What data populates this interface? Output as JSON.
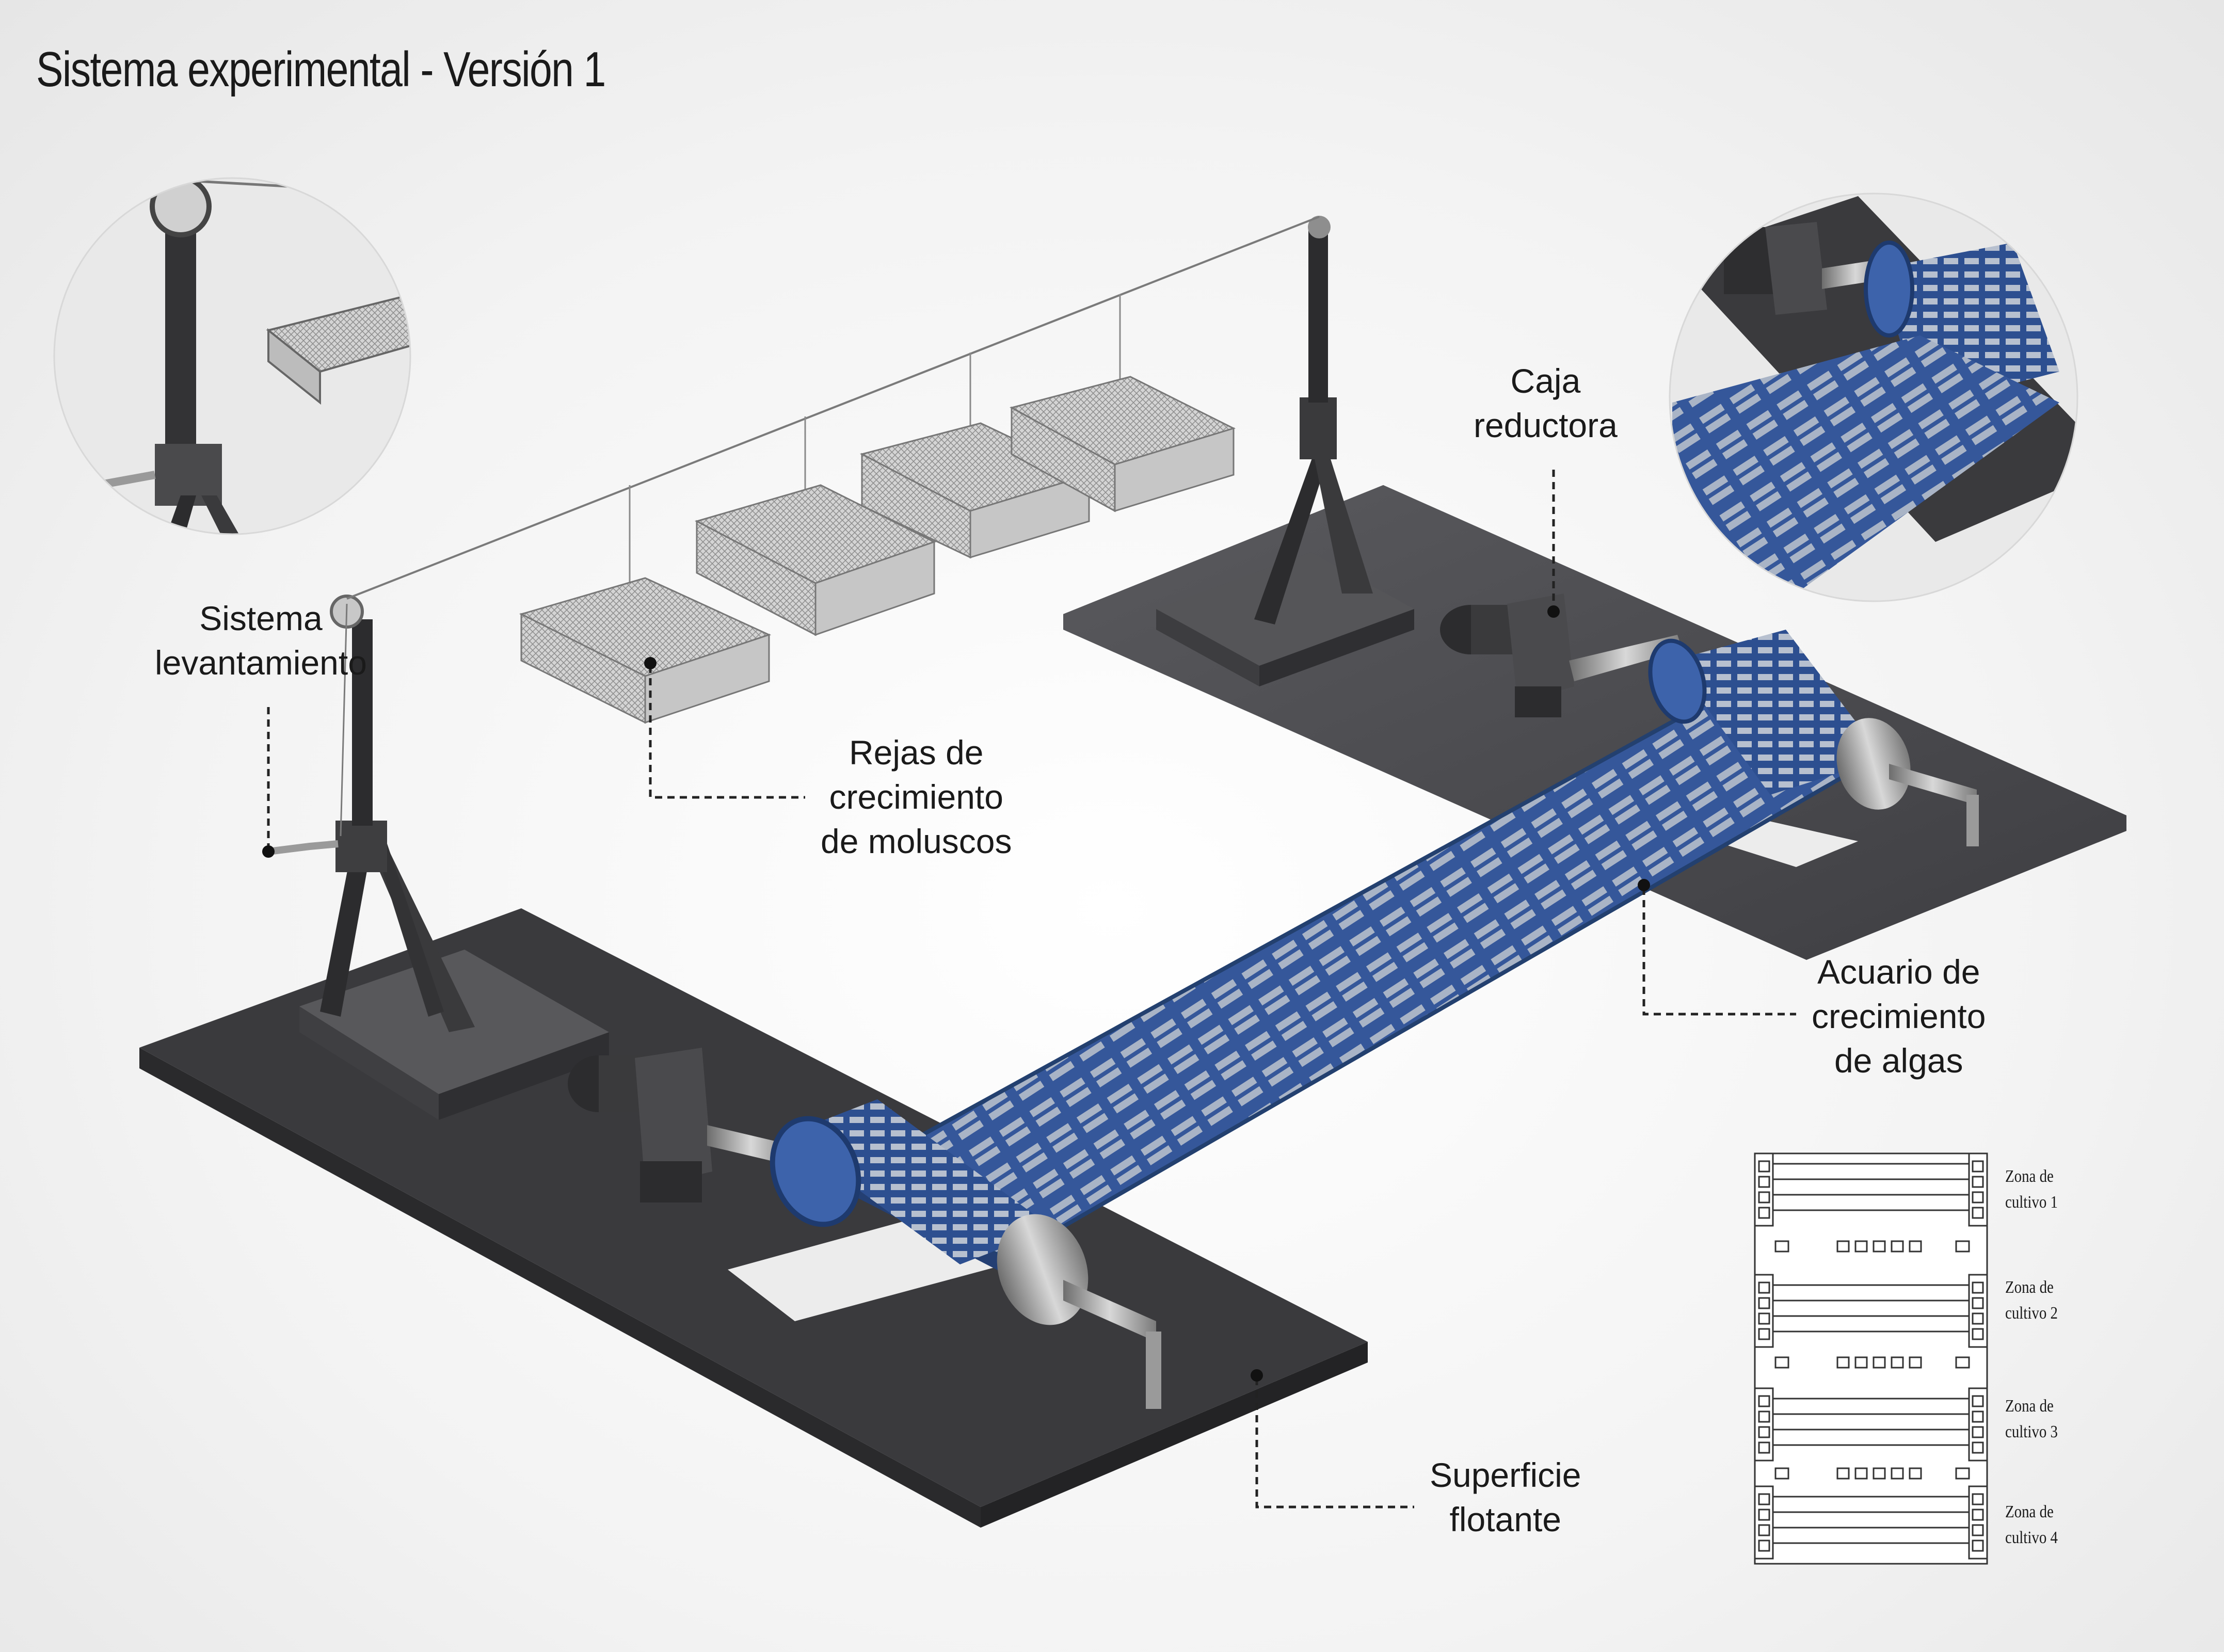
{
  "title": "Sistema experimental - Versión 1",
  "labels": {
    "lifting": [
      "Sistema",
      "levantamiento"
    ],
    "gearbox": [
      "Caja",
      "reductora"
    ],
    "cages": [
      "Rejas de",
      "crecimiento",
      "de moluscos"
    ],
    "aquarium": [
      "Acuario de",
      "crecimiento",
      "de algas"
    ],
    "surface": [
      "Superficie",
      "flotante"
    ]
  },
  "legend": {
    "zones": [
      [
        "Zona de",
        "cultivo 1"
      ],
      [
        "Zona de",
        "cultivo 2"
      ],
      [
        "Zona de",
        "cultivo 3"
      ],
      [
        "Zona de",
        "cultivo 4"
      ]
    ]
  },
  "colors": {
    "platform": "#4a4a4d",
    "belt": "#35579a",
    "belt_dark": "#243f73",
    "steel": "#9a9a9a",
    "cage": "#b8b8b8",
    "leader": "#222222"
  }
}
